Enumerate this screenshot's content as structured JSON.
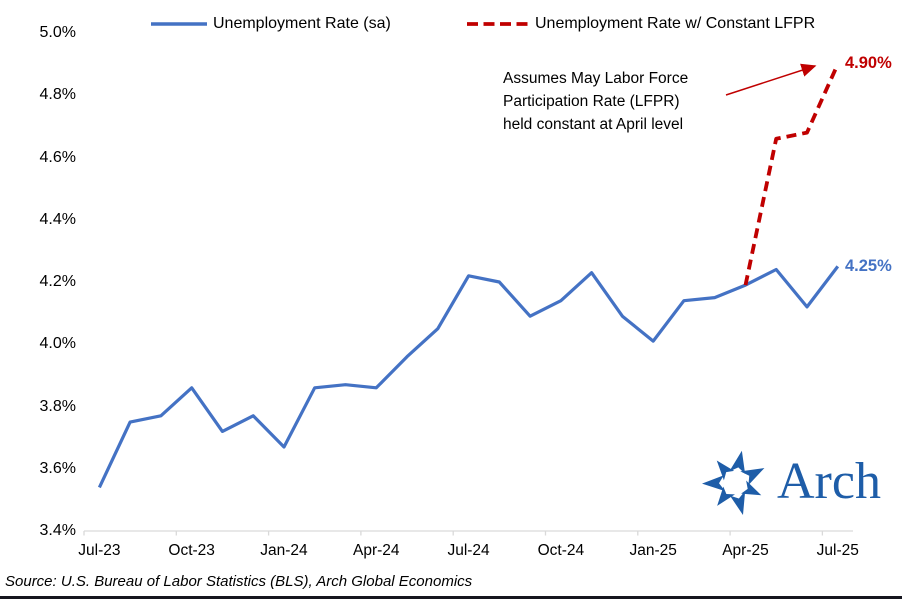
{
  "annotation": {
    "lines": [
      "Assumes May Labor Force",
      "Participation Rate (LFPR)",
      "held constant at April level"
    ]
  },
  "callouts": {
    "red_end_value": "4.90%",
    "blue_end_value": "4.25%"
  },
  "source_line": "Source: U.S. Bureau of Labor Statistics (BLS), Arch Global Economics",
  "logo": {
    "wordmark": "Arch"
  },
  "colors": {
    "series_blue": "#4472C4",
    "series_red": "#C00000",
    "axis_gray": "#D9D9D9",
    "callout_red": "#C00000",
    "callout_blue": "#4472C4",
    "logo_blue": "#1E5DA8",
    "footer_bar": "#15151E"
  },
  "chart_data": {
    "type": "line",
    "title": "",
    "xlabel": "",
    "ylabel": "",
    "grid": false,
    "legend_position": "top",
    "ylim": [
      3.4,
      5.0
    ],
    "y_ticks": [
      {
        "label": "5.0%",
        "value": 5.0
      },
      {
        "label": "4.8%",
        "value": 4.8
      },
      {
        "label": "4.6%",
        "value": 4.6
      },
      {
        "label": "4.4%",
        "value": 4.4
      },
      {
        "label": "4.2%",
        "value": 4.2
      },
      {
        "label": "4.0%",
        "value": 4.0
      },
      {
        "label": "3.8%",
        "value": 3.8
      },
      {
        "label": "3.6%",
        "value": 3.6
      },
      {
        "label": "3.4%",
        "value": 3.4
      }
    ],
    "x": [
      "Jul-23",
      "Aug-23",
      "Sep-23",
      "Oct-23",
      "Nov-23",
      "Dec-23",
      "Jan-24",
      "Feb-24",
      "Mar-24",
      "Apr-24",
      "May-24",
      "Jun-24",
      "Jul-24",
      "Aug-24",
      "Sep-24",
      "Oct-24",
      "Nov-24",
      "Dec-24",
      "Jan-25",
      "Feb-25",
      "Mar-25",
      "Apr-25",
      "May-25",
      "Jun-25",
      "Jul-25"
    ],
    "x_tick_labels": [
      "Jul-23",
      "Oct-23",
      "Jan-24",
      "Apr-24",
      "Jul-24",
      "Oct-24",
      "Jan-25",
      "Apr-25",
      "Jul-25"
    ],
    "x_tick_indices": [
      0,
      3,
      6,
      9,
      12,
      15,
      18,
      21,
      24
    ],
    "series": [
      {
        "name": "Unemployment Rate (sa)",
        "color": "#4472C4",
        "dashed": false,
        "values": [
          3.54,
          3.75,
          3.77,
          3.86,
          3.72,
          3.77,
          3.67,
          3.86,
          3.87,
          3.86,
          3.96,
          4.05,
          4.22,
          4.2,
          4.09,
          4.14,
          4.23,
          4.09,
          4.01,
          4.14,
          4.15,
          4.19,
          4.24,
          4.12,
          4.25
        ]
      },
      {
        "name": "Unemployment Rate w/ Constant LFPR",
        "color": "#C00000",
        "dashed": true,
        "values": [
          null,
          null,
          null,
          null,
          null,
          null,
          null,
          null,
          null,
          null,
          null,
          null,
          null,
          null,
          null,
          null,
          null,
          null,
          null,
          null,
          null,
          4.19,
          4.66,
          4.68,
          4.9
        ]
      }
    ]
  }
}
